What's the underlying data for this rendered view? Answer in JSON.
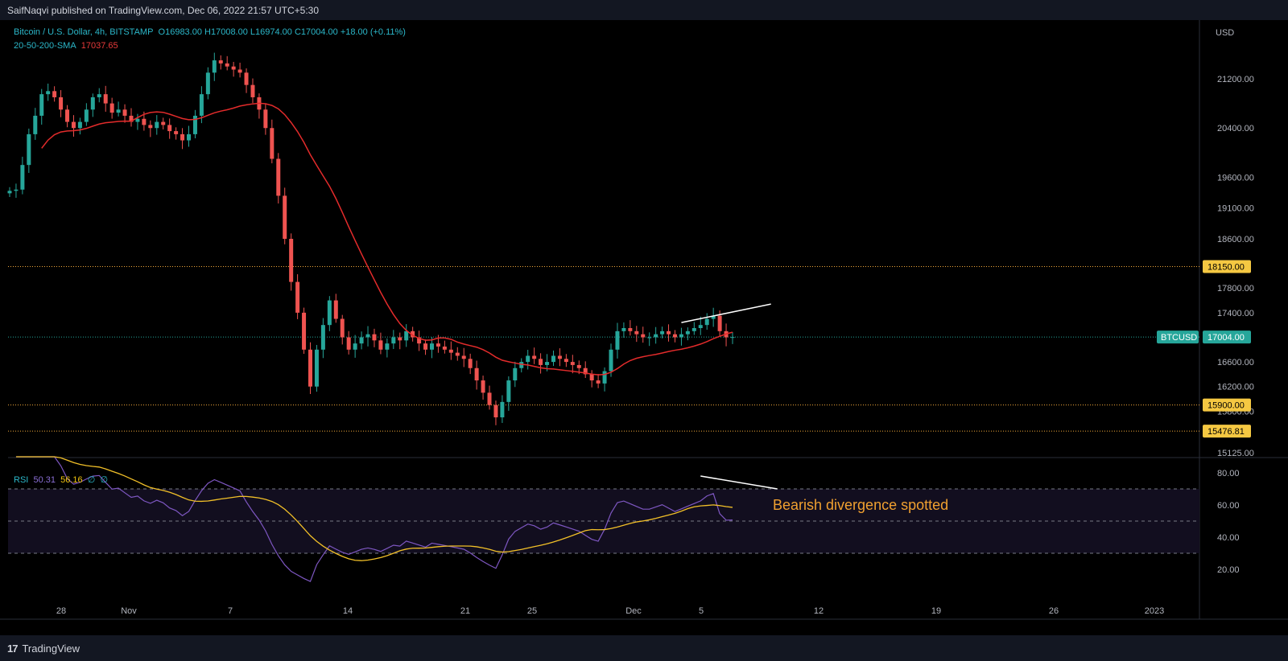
{
  "header": {
    "published": "SaifNaqvi published on TradingView.com, Dec 06, 2022 21:57 UTC+5:30"
  },
  "legend": {
    "symbol": "Bitcoin / U.S. Dollar, 4h, BITSTAMP",
    "ohlc": "O16983.00  H17008.00  L16974.00  C17004.00  +18.00 (+0.11%)",
    "sma_label": "20-50-200-SMA",
    "sma_value": "17037.65",
    "rsi_label": "RSI",
    "rsi_value": "50.31",
    "rsi_ma_value": "56.16",
    "rsi_extra1": "∅",
    "rsi_extra2": "∅"
  },
  "footer": {
    "brand": "TradingView"
  },
  "colors": {
    "up": "#26a69a",
    "down": "#ef5350",
    "sma": "#e32b2b",
    "rsi": "#7e57c2",
    "rsi_ma": "#f2c028",
    "level": "#f2a93b",
    "axis_text": "#b2b5be"
  },
  "annotation": {
    "text": "Bearish divergence spotted"
  },
  "chart_data": {
    "type": "candlestick",
    "price_axis": {
      "unit": "USD",
      "ticks": [
        21200,
        20400,
        19600,
        19100,
        18600,
        17800,
        17400,
        16600,
        16200,
        15800,
        15125
      ],
      "tick_labels": [
        "21200.00",
        "20400.00",
        "19600.00",
        "19100.00",
        "18600.00",
        "17800.00",
        "17400.00",
        "16600.00",
        "16200.00",
        "15800.00",
        "15125.00"
      ]
    },
    "horizontal_levels": [
      {
        "value": 18150,
        "label": "18150.00"
      },
      {
        "value": 15900,
        "label": "15900.00"
      },
      {
        "value": 15476.81,
        "label": "15476.81"
      }
    ],
    "last_price": {
      "symbol": "BTCUSD",
      "value": 17004,
      "label": "17004.00"
    },
    "x_axis_labels": [
      "28",
      "Nov",
      "7",
      "14",
      "21",
      "25",
      "Dec",
      "5",
      "12",
      "19",
      "26",
      "2023"
    ],
    "closes": [
      19380,
      19400,
      19800,
      20300,
      20600,
      20950,
      21000,
      20900,
      20700,
      20500,
      20400,
      20500,
      20700,
      20900,
      20950,
      20800,
      20650,
      20700,
      20600,
      20500,
      20550,
      20450,
      20400,
      20500,
      20450,
      20350,
      20300,
      20200,
      20300,
      20600,
      20950,
      21300,
      21500,
      21450,
      21400,
      21350,
      21300,
      21100,
      20900,
      20700,
      20400,
      19900,
      19300,
      18600,
      17900,
      17400,
      16800,
      16200,
      16800,
      17200,
      17600,
      17300,
      17000,
      16800,
      16900,
      17000,
      17050,
      16950,
      16800,
      16900,
      17000,
      16950,
      17100,
      17000,
      16900,
      16800,
      16900,
      16850,
      16800,
      16750,
      16700,
      16650,
      16500,
      16300,
      16100,
      15900,
      15700,
      15950,
      16300,
      16500,
      16600,
      16700,
      16650,
      16550,
      16600,
      16700,
      16650,
      16600,
      16550,
      16500,
      16400,
      16300,
      16250,
      16450,
      16800,
      17100,
      17150,
      17100,
      17050,
      17000,
      17000,
      17050,
      17100,
      17050,
      17000,
      17050,
      17100,
      17150,
      17200,
      17300,
      17350,
      17100,
      17000,
      17004
    ],
    "sma_value": 17037.65,
    "rsi": {
      "ticks": [
        80,
        60,
        40,
        20
      ],
      "tick_labels": [
        "80.00",
        "60.00",
        "40.00",
        "20.00"
      ],
      "bands": [
        70,
        50,
        30
      ],
      "last_value": 50.31,
      "ma_last_value": 56.16
    },
    "trendlines": [
      {
        "pane": "price",
        "from": [
          105,
          17240
        ],
        "to": [
          119,
          17540
        ]
      },
      {
        "pane": "rsi",
        "from": [
          108,
          78
        ],
        "to": [
          120,
          70
        ]
      }
    ]
  }
}
